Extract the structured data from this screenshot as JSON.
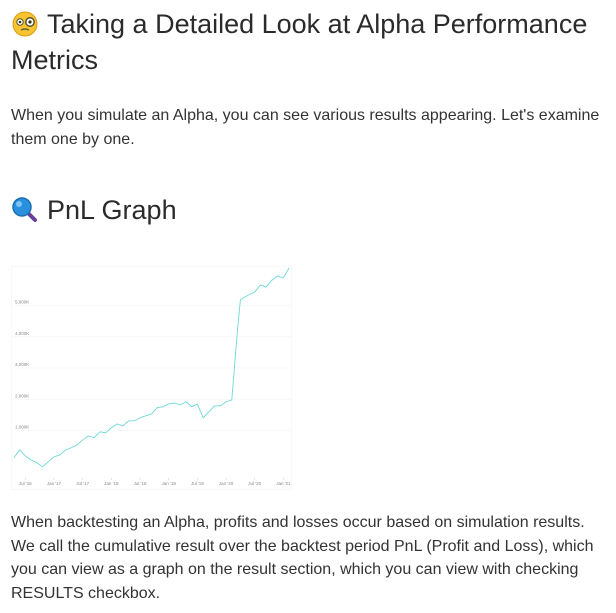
{
  "header": {
    "title": "Taking a Detailed Look at Alpha Performance Metrics"
  },
  "intro": "When you simulate an Alpha, you can see various results appearing. Let's examine them one by one.",
  "section": {
    "title": "PnL Graph"
  },
  "chart_data": {
    "type": "line",
    "x": [
      2016.3,
      2016.4,
      2016.5,
      2016.6,
      2016.7,
      2016.8,
      2016.9,
      2017.0,
      2017.1,
      2017.2,
      2017.3,
      2017.4,
      2017.5,
      2017.6,
      2017.7,
      2017.8,
      2017.9,
      2018.0,
      2018.1,
      2018.2,
      2018.3,
      2018.4,
      2018.5,
      2018.6,
      2018.7,
      2018.8,
      2018.9,
      2019.0,
      2019.1,
      2019.2,
      2019.3,
      2019.4,
      2019.5,
      2019.6,
      2019.7,
      2019.8,
      2019.9,
      2020.0,
      2020.1,
      2020.2,
      2020.25,
      2020.3,
      2020.4,
      2020.5,
      2020.6,
      2020.7,
      2020.8,
      2020.9,
      2021.0,
      2021.1
    ],
    "series": [
      {
        "color": "#6fd8d8",
        "values": [
          130,
          380,
          190,
          60,
          -30,
          -160,
          0,
          160,
          220,
          380,
          450,
          540,
          700,
          830,
          770,
          960,
          930,
          1090,
          1210,
          1150,
          1310,
          1310,
          1410,
          1470,
          1530,
          1730,
          1760,
          1850,
          1880,
          1820,
          1920,
          1760,
          1850,
          1410,
          1600,
          1790,
          1790,
          1920,
          1980,
          4220,
          5180,
          5240,
          5340,
          5430,
          5650,
          5590,
          5810,
          5940,
          5880,
          6200
        ]
      }
    ],
    "xlim": [
      2016.25,
      2021.15
    ],
    "ylim": [
      -900,
      6260
    ],
    "xticks": [
      {
        "value": 2016.5,
        "label": "Jul '16"
      },
      {
        "value": 2017.0,
        "label": "Jan '17"
      },
      {
        "value": 2017.5,
        "label": "Jul '17"
      },
      {
        "value": 2018.0,
        "label": "Jan '18"
      },
      {
        "value": 2018.5,
        "label": "Jul '18"
      },
      {
        "value": 2019.0,
        "label": "Jan '19"
      },
      {
        "value": 2019.5,
        "label": "Jul '19"
      },
      {
        "value": 2020.0,
        "label": "Jan '20"
      },
      {
        "value": 2020.5,
        "label": "Jul '20"
      },
      {
        "value": 2021.0,
        "label": "Jan '21"
      }
    ],
    "yticks": [
      {
        "value": 1000,
        "label": "1,000K"
      },
      {
        "value": 2000,
        "label": "2,000K"
      },
      {
        "value": 3000,
        "label": "3,000K"
      },
      {
        "value": 4000,
        "label": "4,000K"
      },
      {
        "value": 5000,
        "label": "5,000K"
      }
    ],
    "grid": true
  },
  "paragraph": "When backtesting an Alpha, profits and losses occur based on simulation results. We call the cumulative result over the backtest period PnL (Profit and Loss), which you can view as a graph on the result section, which you can view with checking RESULTS checkbox."
}
